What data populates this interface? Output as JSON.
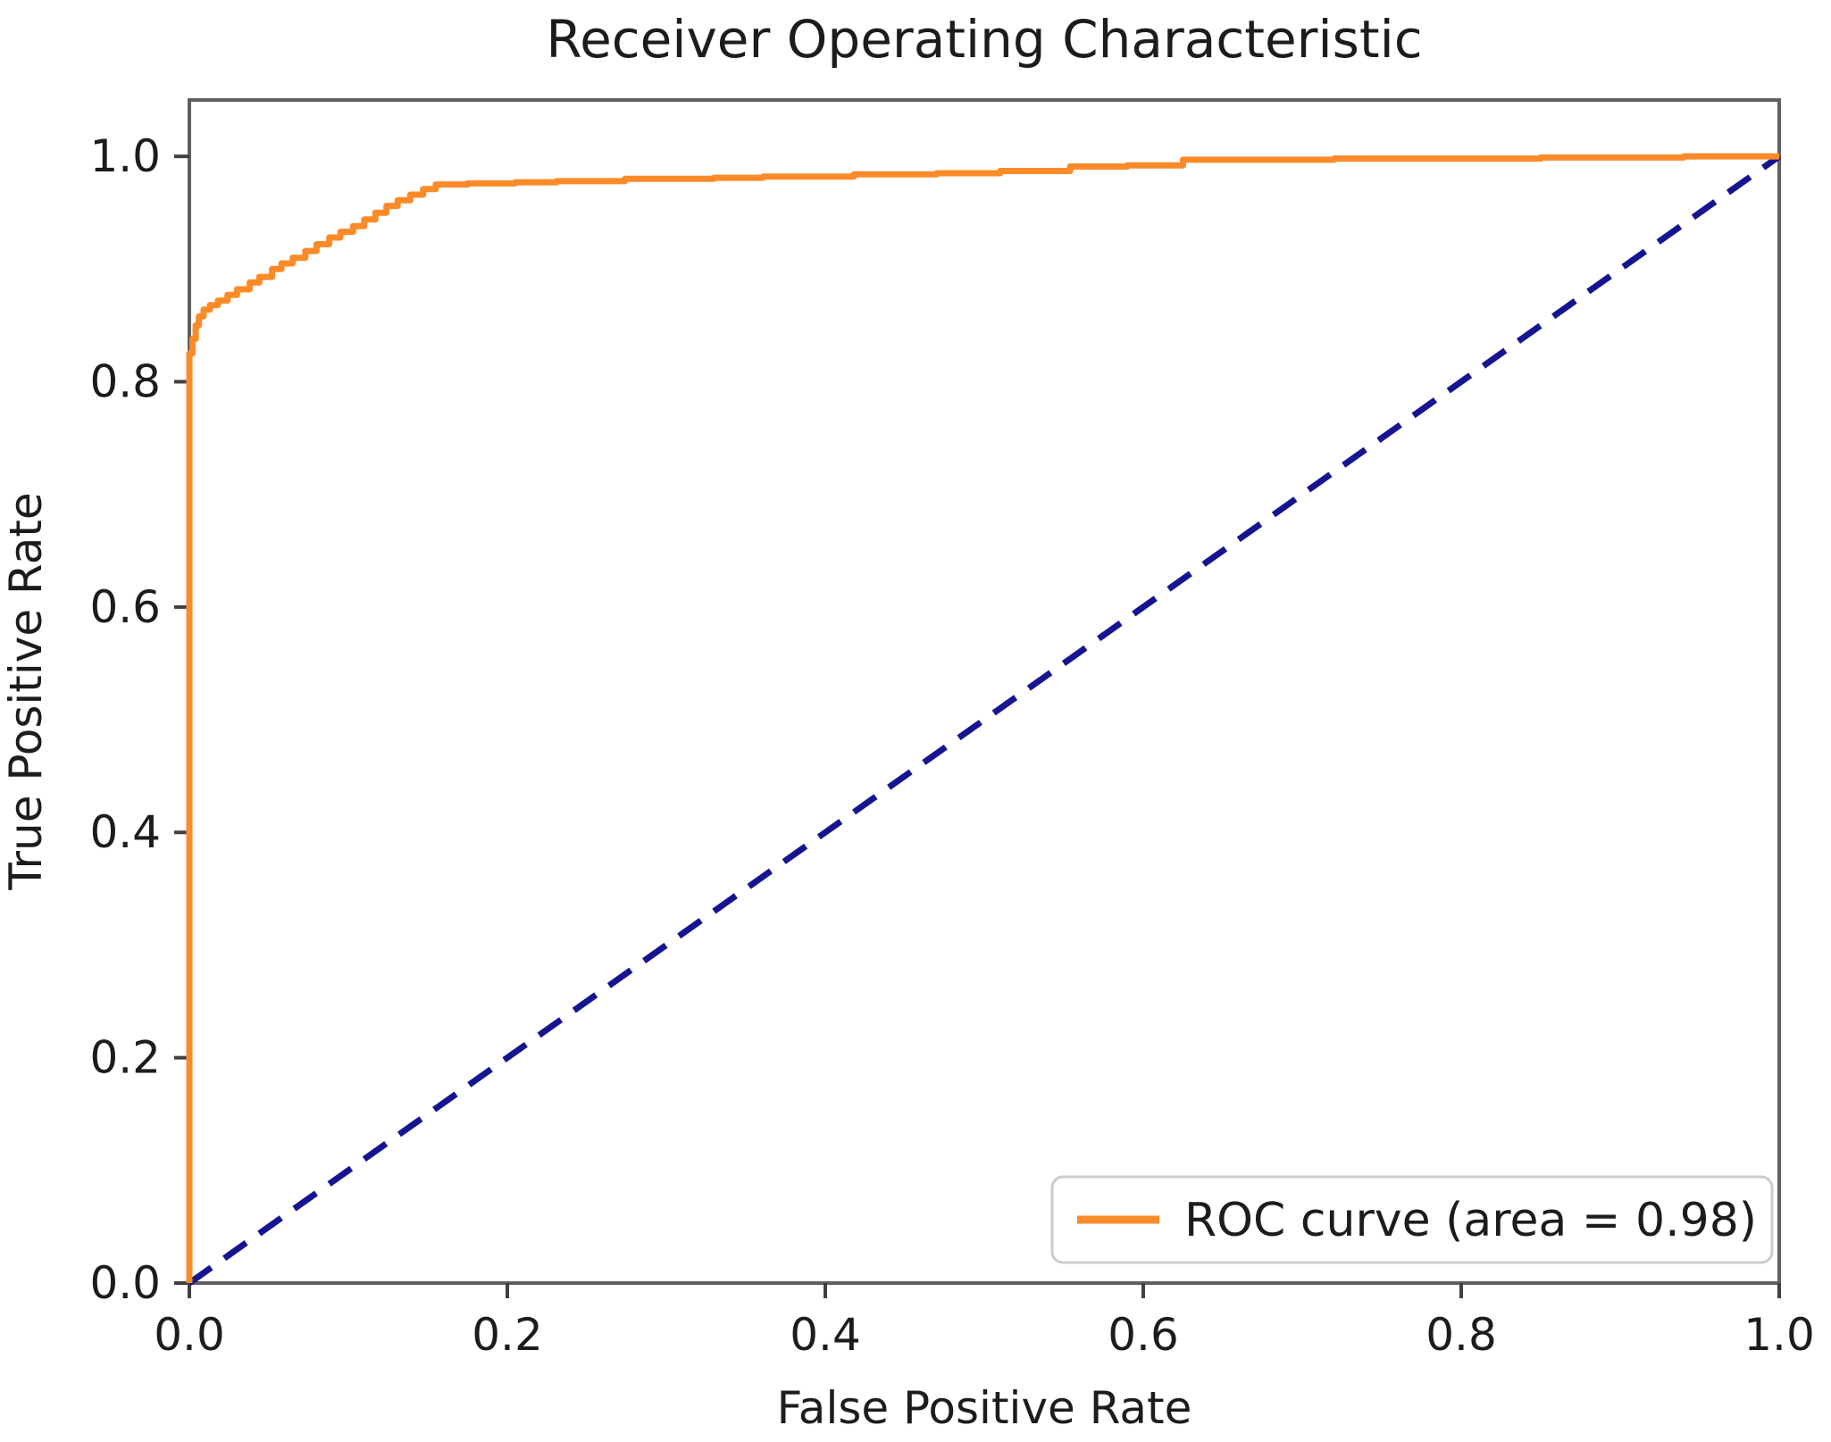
{
  "chart_data": {
    "type": "line",
    "title": "Receiver Operating Characteristic",
    "xlabel": "False Positive Rate",
    "ylabel": "True Positive Rate",
    "xlim": [
      0.0,
      1.0
    ],
    "ylim": [
      0.0,
      1.05
    ],
    "grid": false,
    "x_ticks": [
      0.0,
      0.2,
      0.4,
      0.6,
      0.8,
      1.0
    ],
    "x_tick_labels": [
      "0.0",
      "0.2",
      "0.4",
      "0.6",
      "0.8",
      "1.0"
    ],
    "y_ticks": [
      0.0,
      0.2,
      0.4,
      0.6,
      0.8,
      1.0
    ],
    "y_tick_labels": [
      "0.0",
      "0.2",
      "0.4",
      "0.6",
      "0.8",
      "1.0"
    ],
    "legend": {
      "position": "lower right",
      "entries": [
        {
          "label": "ROC curve (area = 0.98)",
          "color": "#fb8b28",
          "style": "solid"
        }
      ]
    },
    "series": [
      {
        "name": "ROC curve",
        "auc": 0.98,
        "color": "#fb8b28",
        "style": "solid",
        "points": [
          [
            0,
            0
          ],
          [
            0,
            0.825
          ],
          [
            0.002,
            0.825
          ],
          [
            0.002,
            0.838
          ],
          [
            0.004,
            0.838
          ],
          [
            0.004,
            0.85
          ],
          [
            0.006,
            0.85
          ],
          [
            0.006,
            0.858
          ],
          [
            0.009,
            0.858
          ],
          [
            0.009,
            0.864
          ],
          [
            0.013,
            0.864
          ],
          [
            0.013,
            0.868
          ],
          [
            0.018,
            0.868
          ],
          [
            0.018,
            0.872
          ],
          [
            0.024,
            0.872
          ],
          [
            0.024,
            0.877
          ],
          [
            0.03,
            0.877
          ],
          [
            0.03,
            0.882
          ],
          [
            0.038,
            0.882
          ],
          [
            0.038,
            0.888
          ],
          [
            0.044,
            0.888
          ],
          [
            0.044,
            0.893
          ],
          [
            0.052,
            0.893
          ],
          [
            0.052,
            0.9
          ],
          [
            0.058,
            0.9
          ],
          [
            0.058,
            0.905
          ],
          [
            0.065,
            0.905
          ],
          [
            0.065,
            0.91
          ],
          [
            0.073,
            0.91
          ],
          [
            0.073,
            0.916
          ],
          [
            0.08,
            0.916
          ],
          [
            0.08,
            0.922
          ],
          [
            0.088,
            0.922
          ],
          [
            0.088,
            0.928
          ],
          [
            0.095,
            0.928
          ],
          [
            0.095,
            0.933
          ],
          [
            0.103,
            0.933
          ],
          [
            0.103,
            0.938
          ],
          [
            0.11,
            0.938
          ],
          [
            0.11,
            0.944
          ],
          [
            0.117,
            0.944
          ],
          [
            0.117,
            0.95
          ],
          [
            0.124,
            0.95
          ],
          [
            0.124,
            0.956
          ],
          [
            0.131,
            0.956
          ],
          [
            0.131,
            0.961
          ],
          [
            0.139,
            0.961
          ],
          [
            0.139,
            0.966
          ],
          [
            0.147,
            0.966
          ],
          [
            0.147,
            0.971
          ],
          [
            0.155,
            0.971
          ],
          [
            0.155,
            0.975
          ],
          [
            0.175,
            0.975
          ],
          [
            0.175,
            0.976
          ],
          [
            0.205,
            0.976
          ],
          [
            0.205,
            0.977
          ],
          [
            0.231,
            0.977
          ],
          [
            0.231,
            0.978
          ],
          [
            0.274,
            0.978
          ],
          [
            0.274,
            0.98
          ],
          [
            0.33,
            0.98
          ],
          [
            0.33,
            0.981
          ],
          [
            0.361,
            0.981
          ],
          [
            0.361,
            0.982
          ],
          [
            0.418,
            0.982
          ],
          [
            0.418,
            0.984
          ],
          [
            0.47,
            0.984
          ],
          [
            0.47,
            0.985
          ],
          [
            0.51,
            0.985
          ],
          [
            0.51,
            0.987
          ],
          [
            0.554,
            0.987
          ],
          [
            0.554,
            0.991
          ],
          [
            0.59,
            0.991
          ],
          [
            0.59,
            0.992
          ],
          [
            0.625,
            0.992
          ],
          [
            0.625,
            0.997
          ],
          [
            0.72,
            0.997
          ],
          [
            0.72,
            0.998
          ],
          [
            0.85,
            0.998
          ],
          [
            0.85,
            0.999
          ],
          [
            0.94,
            0.999
          ],
          [
            0.94,
            1.0
          ],
          [
            1.0,
            1.0
          ]
        ]
      },
      {
        "name": "chance diagonal",
        "color": "#151591",
        "style": "dashed",
        "points": [
          [
            0,
            0
          ],
          [
            1,
            1
          ]
        ]
      }
    ],
    "colors": {
      "roc_curve": "#fb8b28",
      "diagonal": "#151591",
      "spine": "#606060",
      "tick": "#404040",
      "text": "#1c1c1c",
      "legend_border": "#cccccc",
      "background": "#ffffff"
    }
  }
}
